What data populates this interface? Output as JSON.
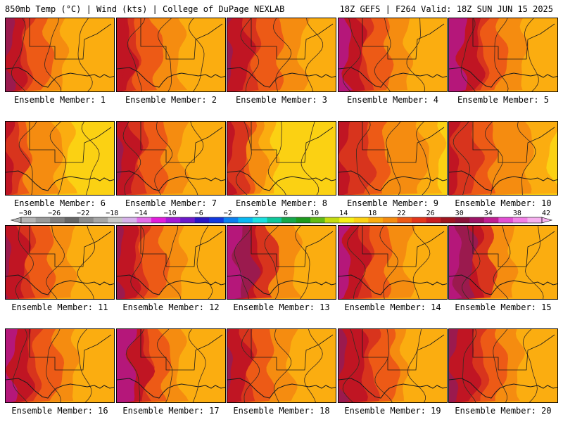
{
  "header": {
    "left": "850mb Temp (°C) | Wind (kts) | College of DuPage NEXLAB",
    "right": "18Z GEFS | F264 Valid: 18Z SUN JUN 15 2025"
  },
  "panels": [
    {
      "label": "Ensemble Member: 1",
      "scheme": [
        "#9b1a4e",
        "#c01523",
        "#d8341d",
        "#ed5a16",
        "#f58c10",
        "#fbad10"
      ],
      "bands": [
        0.06,
        0.12,
        0.22,
        0.36,
        0.55
      ]
    },
    {
      "label": "Ensemble Member: 2",
      "scheme": [
        "#c01523",
        "#c01523",
        "#d8341d",
        "#ed5a16",
        "#f58c10",
        "#fbad10"
      ],
      "bands": [
        0.05,
        0.1,
        0.2,
        0.35,
        0.6
      ]
    },
    {
      "label": "Ensemble Member: 3",
      "scheme": [
        "#9b1a4e",
        "#c01523",
        "#d8341d",
        "#ed5a16",
        "#f58c10",
        "#fbad10"
      ],
      "bands": [
        0.04,
        0.16,
        0.28,
        0.45,
        0.7
      ]
    },
    {
      "label": "Ensemble Member: 4",
      "scheme": [
        "#b5177a",
        "#c01523",
        "#d8341d",
        "#ed5a16",
        "#f58c10",
        "#fbad10"
      ],
      "bands": [
        0.1,
        0.18,
        0.28,
        0.42,
        0.65
      ]
    },
    {
      "label": "Ensemble Member: 5",
      "scheme": [
        "#b5177a",
        "#c01523",
        "#d8341d",
        "#ed5a16",
        "#f58c10",
        "#fbad10"
      ],
      "bands": [
        0.14,
        0.24,
        0.34,
        0.46,
        0.7
      ]
    },
    {
      "label": "Ensemble Member: 6",
      "scheme": [
        "#c01523",
        "#d8341d",
        "#ed5a16",
        "#f58c10",
        "#fbad10",
        "#fbd113"
      ],
      "bands": [
        0.06,
        0.12,
        0.22,
        0.45,
        0.6
      ]
    },
    {
      "label": "Ensemble Member: 7",
      "scheme": [
        "#9b1a4e",
        "#c01523",
        "#d8341d",
        "#ed5a16",
        "#f58c10",
        "#fbad10"
      ],
      "bands": [
        0.05,
        0.14,
        0.26,
        0.4,
        0.62
      ]
    },
    {
      "label": "Ensemble Member: 8",
      "scheme": [
        "#c01523",
        "#d8341d",
        "#ed5a16",
        "#f58c10",
        "#fbad10",
        "#fbd113"
      ],
      "bands": [
        0.05,
        0.14,
        0.22,
        0.3,
        0.45
      ]
    },
    {
      "label": "Ensemble Member: 9",
      "scheme": [
        "#c01523",
        "#d8341d",
        "#ed5a16",
        "#f58c10",
        "#fbad10",
        "#fbd113"
      ],
      "bands": [
        0.08,
        0.25,
        0.45,
        0.75,
        0.95
      ]
    },
    {
      "label": "Ensemble Member: 10",
      "scheme": [
        "#c01523",
        "#d8341d",
        "#ed5a16",
        "#f58c10",
        "#fbad10",
        "#fbd113"
      ],
      "bands": [
        0.08,
        0.22,
        0.42,
        0.7,
        0.95
      ]
    },
    {
      "label": "Ensemble Member: 11",
      "scheme": [
        "#9b1a4e",
        "#c01523",
        "#d8341d",
        "#ed5a16",
        "#f58c10",
        "#fbad10"
      ],
      "bands": [
        0.04,
        0.14,
        0.24,
        0.38,
        0.62
      ]
    },
    {
      "label": "Ensemble Member: 12",
      "scheme": [
        "#9b1a4e",
        "#c01523",
        "#d8341d",
        "#ed5a16",
        "#f58c10",
        "#fbad10"
      ],
      "bands": [
        0.04,
        0.14,
        0.26,
        0.4,
        0.62
      ]
    },
    {
      "label": "Ensemble Member: 13",
      "scheme": [
        "#b5177a",
        "#9b1a4e",
        "#c01523",
        "#d8341d",
        "#f58c10",
        "#fbad10"
      ],
      "bands": [
        0.12,
        0.2,
        0.3,
        0.4,
        0.65
      ]
    },
    {
      "label": "Ensemble Member: 14",
      "scheme": [
        "#b5177a",
        "#c01523",
        "#d8341d",
        "#ed5a16",
        "#f58c10",
        "#fbad10"
      ],
      "bands": [
        0.1,
        0.2,
        0.3,
        0.42,
        0.65
      ]
    },
    {
      "label": "Ensemble Member: 15",
      "scheme": [
        "#b5177a",
        "#9b1a4e",
        "#c01523",
        "#d8341d",
        "#f58c10",
        "#fbad10"
      ],
      "bands": [
        0.1,
        0.18,
        0.28,
        0.36,
        0.6
      ]
    },
    {
      "label": "Ensemble Member: 16",
      "scheme": [
        "#b5177a",
        "#c01523",
        "#d8341d",
        "#ed5a16",
        "#f58c10",
        "#fbad10"
      ],
      "bands": [
        0.08,
        0.18,
        0.3,
        0.45,
        0.65
      ]
    },
    {
      "label": "Ensemble Member: 17",
      "scheme": [
        "#b5177a",
        "#c01523",
        "#d8341d",
        "#ed5a16",
        "#f58c10",
        "#fbad10"
      ],
      "bands": [
        0.16,
        0.24,
        0.32,
        0.42,
        0.6
      ]
    },
    {
      "label": "Ensemble Member: 18",
      "scheme": [
        "#9b1a4e",
        "#c01523",
        "#d8341d",
        "#ed5a16",
        "#f58c10",
        "#fbad10"
      ],
      "bands": [
        0.04,
        0.14,
        0.24,
        0.36,
        0.6
      ]
    },
    {
      "label": "Ensemble Member: 19",
      "scheme": [
        "#9b1a4e",
        "#c01523",
        "#d8341d",
        "#ed5a16",
        "#f58c10",
        "#fbad10"
      ],
      "bands": [
        0.06,
        0.2,
        0.34,
        0.48,
        0.62
      ]
    },
    {
      "label": "Ensemble Member: 20",
      "scheme": [
        "#9b1a4e",
        "#c01523",
        "#d8341d",
        "#ed5a16",
        "#f58c10",
        "#fbad10"
      ],
      "bands": [
        0.06,
        0.2,
        0.34,
        0.46,
        0.66
      ]
    }
  ],
  "colorbar": {
    "labels": [
      "−30",
      "−26",
      "−22",
      "−18",
      "−14",
      "−10",
      "−6",
      "−2",
      "2",
      "6",
      "10",
      "14",
      "18",
      "22",
      "26",
      "30",
      "34",
      "38",
      "42"
    ],
    "colors": [
      "#b4b4b4",
      "#999999",
      "#7f7f7f",
      "#666666",
      "#8c8c8c",
      "#a6a6a6",
      "#c8c8c8",
      "#d7b2ea",
      "#e36de8",
      "#e21ddb",
      "#a419d4",
      "#6c19c9",
      "#2a16c4",
      "#1239df",
      "#0c7ff0",
      "#09b8f2",
      "#1ae0e0",
      "#0fc79b",
      "#15a84c",
      "#1d9a1d",
      "#62bb16",
      "#c4dc10",
      "#f6ef16",
      "#fbd113",
      "#fbad10",
      "#f58c10",
      "#ed5a16",
      "#e3361b",
      "#c81d22",
      "#a0151f",
      "#8a1238",
      "#9c1466",
      "#c11e92",
      "#e24fd3",
      "#f37fe6",
      "#f6b0ef"
    ]
  }
}
